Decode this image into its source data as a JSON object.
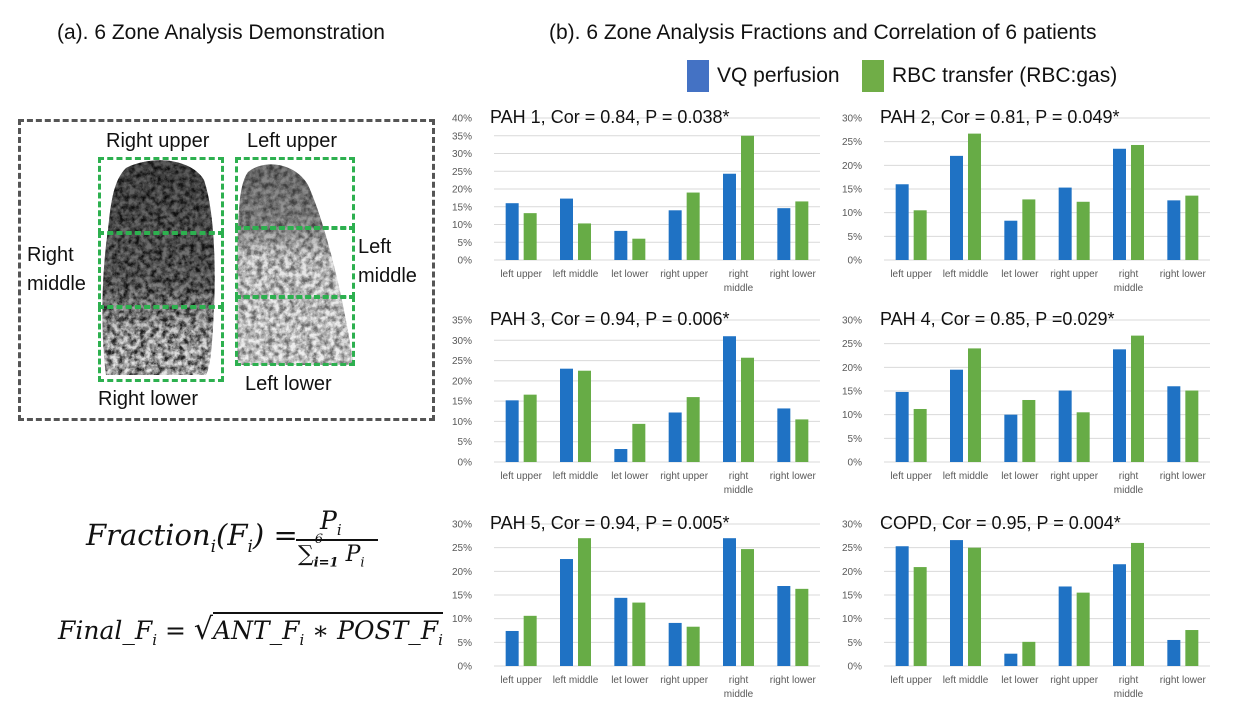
{
  "left_panel": {
    "title": "(a). 6 Zone Analysis Demonstration",
    "zones": {
      "right_upper": "Right upper",
      "left_upper": "Left upper",
      "right_middle": [
        "Right",
        "middle"
      ],
      "left_middle": [
        "Left",
        "middle"
      ],
      "right_lower": "Right lower",
      "left_lower": "Left lower"
    },
    "formula1": {
      "lhs": "Fraction",
      "lhs_sub": "i",
      "lhs_arg": "(F",
      "lhs_arg_sub": "i",
      "lhs_close": ") =",
      "num": "P",
      "num_sub": "i",
      "den": "∑",
      "den_sub": "i=1",
      "den_sup": "6",
      "den_p": "P",
      "den_p_sub": "i"
    },
    "formula2": {
      "lhs": "Final_F",
      "lhs_sub": "i",
      "eq": "=",
      "radical": "√",
      "a": "ANT_F",
      "a_sub": "i",
      "op": " ∗ ",
      "b": "POST_F",
      "b_sub": "i"
    }
  },
  "right_panel": {
    "title": "(b). 6 Zone Analysis Fractions and Correlation of 6 patients"
  },
  "colors": {
    "vq": "#1f72c4",
    "rbc": "#67ac46",
    "grid": "#d9d9d9",
    "axis_text": "#595959"
  },
  "legend": [
    {
      "label": "VQ perfusion",
      "color": "#4472c4"
    },
    {
      "label": "RBC transfer (RBC:gas)",
      "color": "#70ad47"
    }
  ],
  "chart_data": [
    {
      "type": "bar",
      "title": "PAH 1, Cor = 0.84, P = 0.038*",
      "categories": [
        "left upper",
        "left middle",
        "let lower",
        "right upper",
        "right middle",
        "right lower"
      ],
      "series": [
        {
          "name": "VQ perfusion",
          "values": [
            16,
            17.3,
            8.2,
            14,
            24.3,
            14.6
          ]
        },
        {
          "name": "RBC transfer (RBC:gas)",
          "values": [
            13.2,
            10.3,
            6,
            19,
            35,
            16.5
          ]
        }
      ],
      "ylim": [
        0,
        40
      ],
      "yticks": [
        "0%",
        "5%",
        "10%",
        "15%",
        "20%",
        "25%",
        "30%",
        "35%",
        "40%"
      ],
      "ystep": 5
    },
    {
      "type": "bar",
      "title": "PAH 2, Cor = 0.81, P = 0.049*",
      "categories": [
        "left upper",
        "left middle",
        "let lower",
        "right upper",
        "right middle",
        "right lower"
      ],
      "series": [
        {
          "name": "VQ perfusion",
          "values": [
            16,
            22,
            8.3,
            15.3,
            23.5,
            12.6
          ]
        },
        {
          "name": "RBC transfer (RBC:gas)",
          "values": [
            10.5,
            26.7,
            12.8,
            12.3,
            24.3,
            13.6
          ]
        }
      ],
      "ylim": [
        0,
        30
      ],
      "yticks": [
        "0%",
        "5%",
        "10%",
        "15%",
        "20%",
        "25%",
        "30%"
      ],
      "ystep": 5
    },
    {
      "type": "bar",
      "title": "PAH 3, Cor = 0.94, P = 0.006*",
      "categories": [
        "left upper",
        "left middle",
        "let lower",
        "right upper",
        "right middle",
        "right lower"
      ],
      "series": [
        {
          "name": "VQ perfusion",
          "values": [
            15.2,
            23,
            3.2,
            12.2,
            31,
            13.2
          ]
        },
        {
          "name": "RBC transfer (RBC:gas)",
          "values": [
            16.6,
            22.5,
            9.4,
            16,
            25.7,
            10.5
          ]
        }
      ],
      "ylim": [
        0,
        35
      ],
      "yticks": [
        "0%",
        "5%",
        "10%",
        "15%",
        "20%",
        "25%",
        "30%",
        "35%"
      ],
      "ystep": 5
    },
    {
      "type": "bar",
      "title": "PAH 4, Cor = 0.85, P =0.029*",
      "categories": [
        "left upper",
        "left middle",
        "let lower",
        "right upper",
        "right middle",
        "right lower"
      ],
      "series": [
        {
          "name": "VQ perfusion",
          "values": [
            14.8,
            19.5,
            10,
            15.1,
            23.8,
            16
          ]
        },
        {
          "name": "RBC transfer (RBC:gas)",
          "values": [
            11.2,
            24,
            13.1,
            10.5,
            26.7,
            15.1
          ]
        }
      ],
      "ylim": [
        0,
        30
      ],
      "yticks": [
        "0%",
        "5%",
        "10%",
        "15%",
        "20%",
        "25%",
        "30%"
      ],
      "ystep": 5
    },
    {
      "type": "bar",
      "title": "PAH 5, Cor = 0.94, P = 0.005*",
      "categories": [
        "left upper",
        "left middle",
        "let lower",
        "right upper",
        "right middle",
        "right lower"
      ],
      "series": [
        {
          "name": "VQ perfusion",
          "values": [
            7.4,
            22.6,
            14.4,
            9.1,
            27,
            16.9
          ]
        },
        {
          "name": "RBC transfer (RBC:gas)",
          "values": [
            10.6,
            27,
            13.4,
            8.3,
            24.7,
            16.3
          ]
        }
      ],
      "ylim": [
        0,
        30
      ],
      "yticks": [
        "0%",
        "5%",
        "10%",
        "15%",
        "20%",
        "25%",
        "30%"
      ],
      "ystep": 5
    },
    {
      "type": "bar",
      "title": "COPD, Cor = 0.95, P = 0.004*",
      "categories": [
        "left upper",
        "left middle",
        "let lower",
        "right upper",
        "right middle",
        "right lower"
      ],
      "series": [
        {
          "name": "VQ perfusion",
          "values": [
            25.3,
            26.6,
            2.6,
            16.8,
            21.5,
            5.5
          ]
        },
        {
          "name": "RBC transfer (RBC:gas)",
          "values": [
            20.9,
            25,
            5.1,
            15.5,
            26,
            7.6
          ]
        }
      ],
      "ylim": [
        0,
        30
      ],
      "yticks": [
        "0%",
        "5%",
        "10%",
        "15%",
        "20%",
        "25%",
        "30%"
      ],
      "ystep": 5
    }
  ]
}
